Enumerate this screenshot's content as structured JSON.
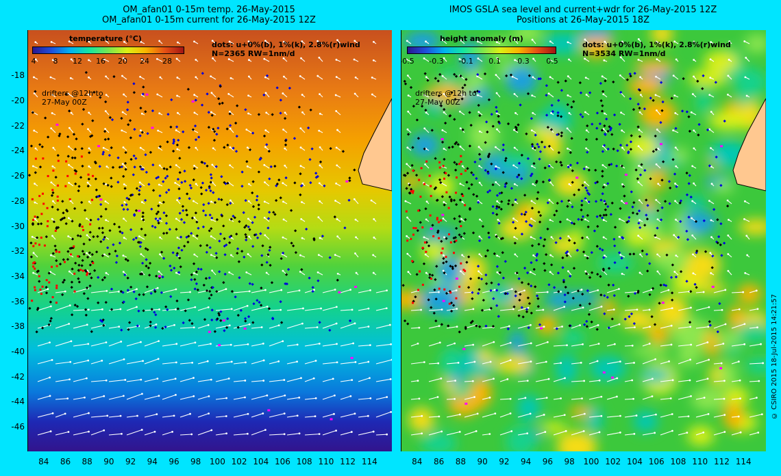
{
  "left_panel": {
    "title_line1": "OM_afan01 0-15m temp. 26-May-2015",
    "title_line2": "OM_afan01 0-15m current for 26-May-2015 12Z",
    "colorbar_title": "temperature (°C)",
    "colorbar_ticks": [
      "4",
      "8",
      "12",
      "16",
      "20",
      "24",
      "28"
    ],
    "legend_line1": "dots: u+0%(b), 1%(k), 2.8%(r)wind",
    "legend_line2": "N=2365 RW=1nm/d",
    "note_line1": "drifters @12h to",
    "note_line2": "27-May 00Z"
  },
  "right_panel": {
    "title_line1": "IMOS GSLA sea level and current+wdr for 26-May-2015 12Z",
    "title_line2": "Positions at 26-May-2015 18Z",
    "colorbar_title": "height anomaly (m)",
    "colorbar_ticks": [
      "-0.5",
      "-0.3",
      "-0.1",
      "0.1",
      "0.3",
      "0.5"
    ],
    "legend_line1": "dots: u+0%(b), 1%(k), 2.8%(r)wind",
    "legend_line2": "N=3534 RW=1nm/d",
    "note_line1": "drifters @12h to",
    "note_line2": "27-May 00Z"
  },
  "axes": {
    "lat_ticks": [
      "-18",
      "-20",
      "-22",
      "-24",
      "-26",
      "-28",
      "-30",
      "-32",
      "-34",
      "-36",
      "-38",
      "-40",
      "-42",
      "-44",
      "-46"
    ],
    "lon_ticks": [
      "84",
      "86",
      "88",
      "90",
      "92",
      "94",
      "96",
      "98",
      "100",
      "102",
      "104",
      "106",
      "108",
      "110",
      "112",
      "114"
    ],
    "lon_range": [
      82.5,
      116
    ],
    "lat_range": [
      -47.8,
      -14.5
    ]
  },
  "footer": "© CSIRO 2015   18-Jul-2015 14:21:57",
  "colors": {
    "background": "#00e5ff",
    "dot_blue": "#0000dd",
    "dot_black": "#000000",
    "dot_red": "#ff0000",
    "dot_magenta": "#ff00ff",
    "land": "#ffc890",
    "arrow": "#ffffff"
  }
}
